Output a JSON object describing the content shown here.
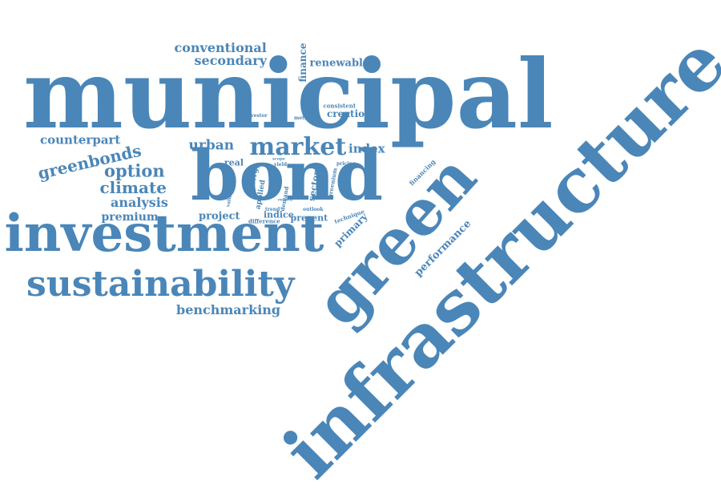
{
  "cloud": {
    "color": "#4a86b8",
    "words": [
      {
        "key": "municipal",
        "text": "municipal"
      },
      {
        "key": "infrastructure",
        "text": "infrastructure"
      },
      {
        "key": "green",
        "text": "green"
      },
      {
        "key": "bond",
        "text": "bond"
      },
      {
        "key": "investment",
        "text": "investment"
      },
      {
        "key": "sustainability",
        "text": "sustainability"
      },
      {
        "key": "market",
        "text": "market"
      },
      {
        "key": "conventional",
        "text": "conventional"
      },
      {
        "key": "secondary",
        "text": "secondary"
      },
      {
        "key": "renewable",
        "text": "renewable"
      },
      {
        "key": "finance",
        "text": "finance"
      },
      {
        "key": "consistent",
        "text": "consistent"
      },
      {
        "key": "creation",
        "text": "creation"
      },
      {
        "key": "investor",
        "text": "investor"
      },
      {
        "key": "method",
        "text": "method"
      },
      {
        "key": "counterpart",
        "text": "counterpart"
      },
      {
        "key": "greenbonds",
        "text": "greenbonds"
      },
      {
        "key": "option",
        "text": "option"
      },
      {
        "key": "climate",
        "text": "climate"
      },
      {
        "key": "analysis",
        "text": "analysis"
      },
      {
        "key": "premium",
        "text": "premium"
      },
      {
        "key": "urban",
        "text": "urban"
      },
      {
        "key": "real",
        "text": "real"
      },
      {
        "key": "index",
        "text": "index"
      },
      {
        "key": "project",
        "text": "project"
      },
      {
        "key": "indice",
        "text": "indice"
      },
      {
        "key": "present",
        "text": "present"
      },
      {
        "key": "difference",
        "text": "difference"
      },
      {
        "key": "technique",
        "text": "technique"
      },
      {
        "key": "primary",
        "text": "primary"
      },
      {
        "key": "performance",
        "text": "performance"
      },
      {
        "key": "financing",
        "text": "financing"
      },
      {
        "key": "benchmarking",
        "text": "benchmarking"
      },
      {
        "key": "energy",
        "text": "energy"
      },
      {
        "key": "applied",
        "text": "applied"
      },
      {
        "key": "valuation",
        "text": "valuation"
      },
      {
        "key": "yield",
        "text": "yield"
      },
      {
        "key": "demand",
        "text": "demand"
      },
      {
        "key": "sector",
        "text": "sector"
      },
      {
        "key": "greenium",
        "text": "greenium"
      },
      {
        "key": "outlook",
        "text": "outlook"
      },
      {
        "key": "pricing",
        "text": "pricing"
      },
      {
        "key": "trend",
        "text": "trend"
      },
      {
        "key": "scope",
        "text": "scope"
      },
      {
        "key": "return",
        "text": "return"
      }
    ]
  }
}
